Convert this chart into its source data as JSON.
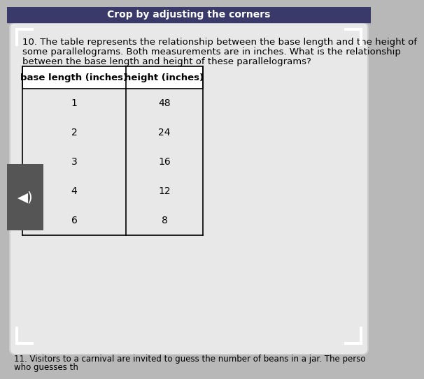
{
  "question_number": "10.",
  "question_text": " The table represents the relationship between the base length and the height of some parallelograms. Both measurements are in inches. What is the relationship between the base length and height of these parallelograms?",
  "col1_header": "base length (inches)",
  "col2_header": "height (inches)",
  "rows": [
    [
      1,
      48
    ],
    [
      2,
      24
    ],
    [
      3,
      16
    ],
    [
      4,
      12
    ],
    [
      6,
      8
    ]
  ],
  "page_bg": "#b8b8b8",
  "card_bg": "#e8e8e8",
  "card_edge": "#d0d0d0",
  "top_bar_color": "#3a3a6a",
  "top_bar_text": "Crop by adjusting the corners",
  "footer_text": "11. Visitors to a carnival are invited to guess the number of beans in a jar. The perso",
  "footer_text2": "who guesses th",
  "title_fontsize": 9.5,
  "table_fontsize": 10,
  "header_fontsize": 9.5
}
